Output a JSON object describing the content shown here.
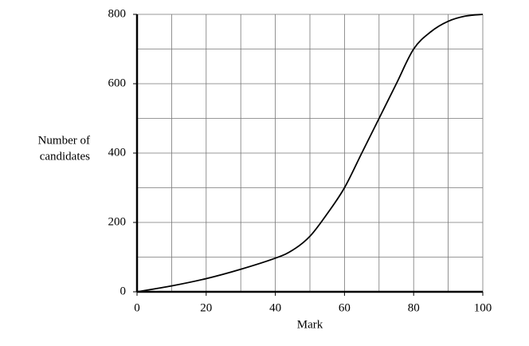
{
  "chart_data": {
    "type": "line",
    "x_label": "Mark",
    "y_label_lines": [
      "Number of",
      "candidates"
    ],
    "x": [
      0,
      10,
      20,
      30,
      40,
      45,
      50,
      55,
      60,
      65,
      70,
      75,
      80,
      85,
      90,
      95,
      100
    ],
    "series": [
      {
        "color": "#000000",
        "values": [
          0,
          17,
          38,
          65,
          97,
          120,
          160,
          225,
          300,
          400,
          500,
          600,
          700,
          750,
          780,
          795,
          800
        ]
      }
    ],
    "xlim": [
      0,
      100
    ],
    "xticks": [
      0,
      20,
      40,
      60,
      80,
      100
    ],
    "minor_xticks": [
      10,
      30,
      50,
      70,
      90
    ],
    "ylim": [
      0,
      800
    ],
    "yticks": [
      0,
      200,
      400,
      600,
      800
    ],
    "minor_yticks": [
      100,
      300,
      500,
      700
    ],
    "grid": true
  }
}
